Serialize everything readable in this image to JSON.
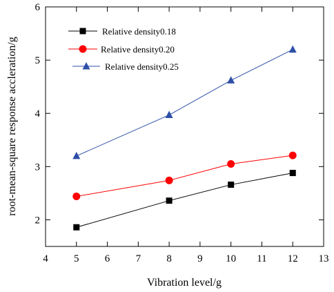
{
  "chart_data": {
    "type": "line",
    "title": "",
    "xlabel": "Vibration level/g",
    "ylabel": "root-mean-square response accleration/g",
    "xlim": [
      4,
      13
    ],
    "ylim": [
      1.5,
      6
    ],
    "xticks": [
      4,
      5,
      6,
      7,
      8,
      9,
      10,
      11,
      12,
      13
    ],
    "yticks": [
      2,
      3,
      4,
      5,
      6
    ],
    "grid": false,
    "legend_position": "top-left",
    "series": [
      {
        "name": "Relative density0.18",
        "color": "#000000",
        "marker": "square",
        "x": [
          5,
          8,
          10,
          12
        ],
        "y": [
          1.86,
          2.36,
          2.66,
          2.88
        ]
      },
      {
        "name": "Relative density0.20",
        "color": "#ff0000",
        "marker": "circle",
        "x": [
          5,
          8,
          10,
          12
        ],
        "y": [
          2.44,
          2.74,
          3.05,
          3.21
        ]
      },
      {
        "name": "Relative density0.25",
        "color": "#2e4fa8",
        "marker": "triangle",
        "x": [
          5,
          8,
          10,
          12
        ],
        "y": [
          3.2,
          3.97,
          4.62,
          5.2
        ]
      }
    ]
  }
}
